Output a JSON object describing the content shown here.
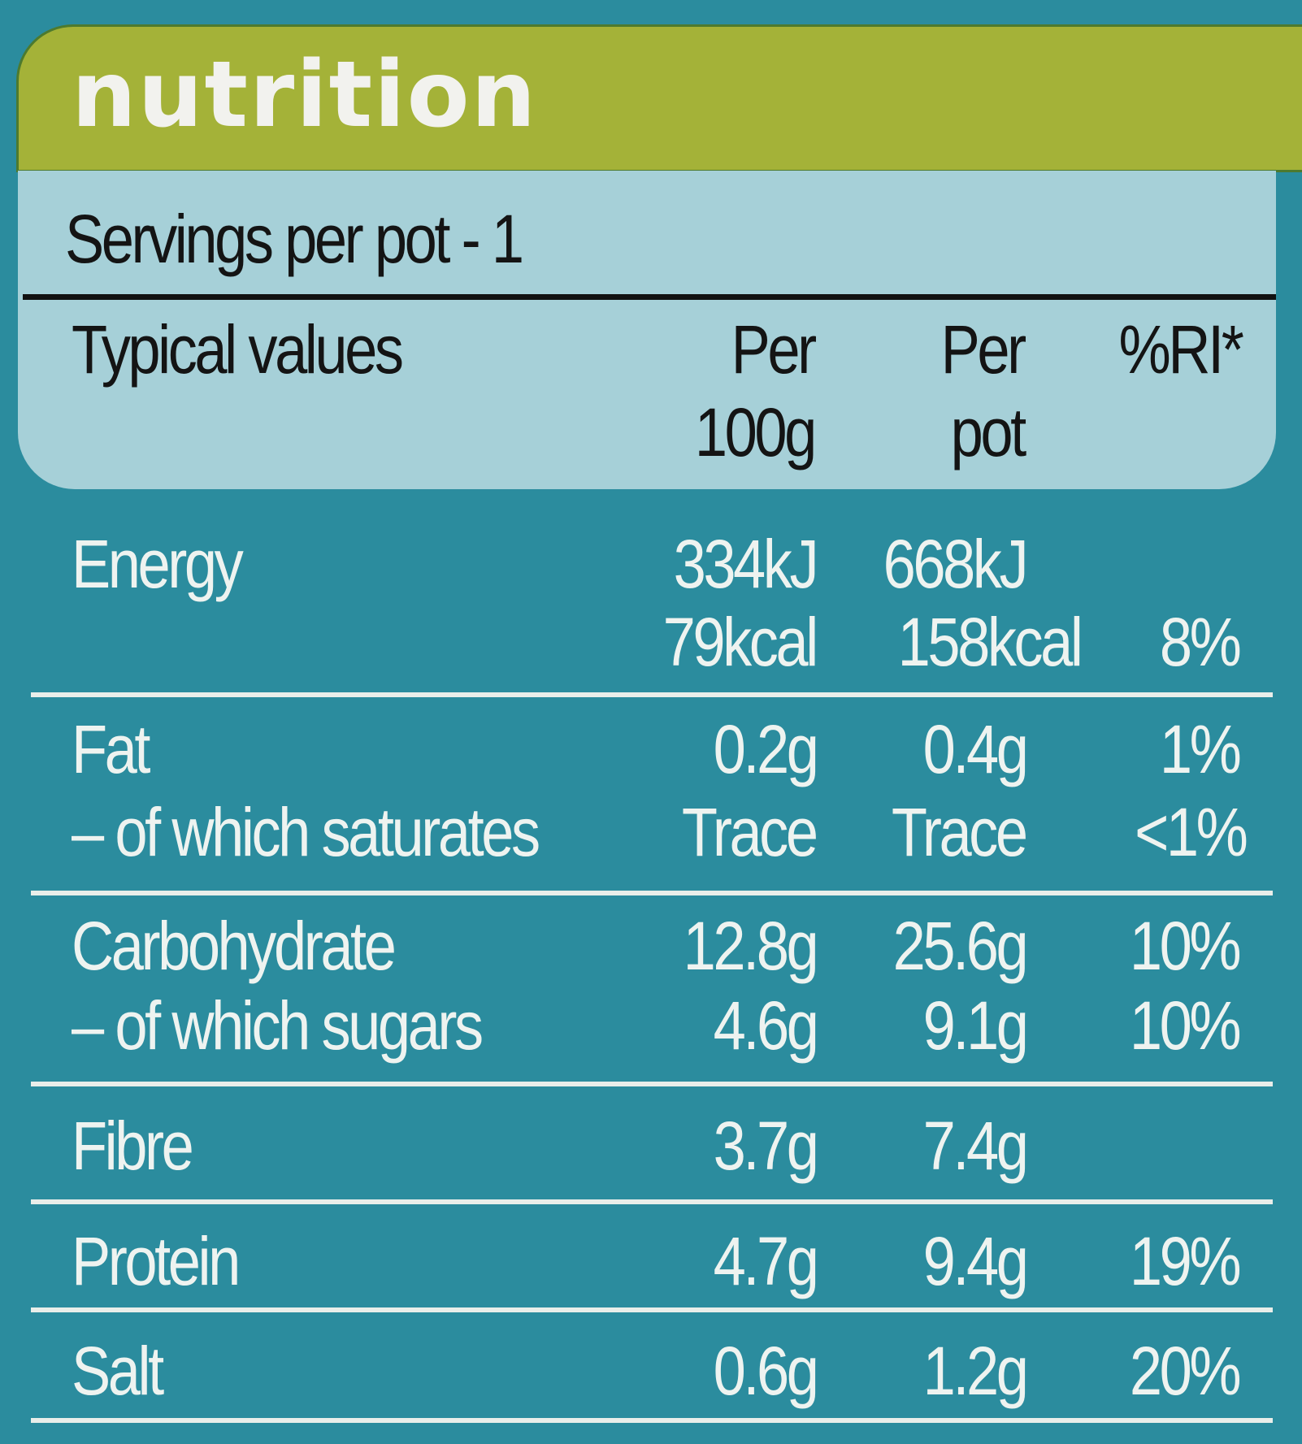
{
  "title": "nutrition",
  "servings": "Servings per pot - 1",
  "header": {
    "label": "Typical values",
    "col1": [
      "Per",
      "100g"
    ],
    "col2": [
      "Per",
      "pot"
    ],
    "col3": "%RI*"
  },
  "rows": [
    {
      "label": "Energy",
      "per100": "334kJ",
      "perpot": "668kJ",
      "ri": ""
    },
    {
      "label": "",
      "per100": "79kcal",
      "perpot": "158kcal",
      "ri": "8%"
    },
    {
      "label": "Fat",
      "per100": "0.2g",
      "perpot": "0.4g",
      "ri": "1%"
    },
    {
      "label": "– of which saturates",
      "per100": "Trace",
      "perpot": "Trace",
      "ri": "<1%"
    },
    {
      "label": "Carbohydrate",
      "per100": "12.8g",
      "perpot": "25.6g",
      "ri": "10%"
    },
    {
      "label": "– of which sugars",
      "per100": "4.6g",
      "perpot": "9.1g",
      "ri": "10%"
    },
    {
      "label": "Fibre",
      "per100": "3.7g",
      "perpot": "7.4g",
      "ri": ""
    },
    {
      "label": "Protein",
      "per100": "4.7g",
      "perpot": "9.4g",
      "ri": "19%"
    },
    {
      "label": "Salt",
      "per100": "0.6g",
      "perpot": "1.2g",
      "ri": "20%"
    }
  ],
  "colors": {
    "background": "#2b8c9e",
    "header_band": "#a4b238",
    "header_panel": "#a6d0d8",
    "text": "#eef3f0"
  }
}
